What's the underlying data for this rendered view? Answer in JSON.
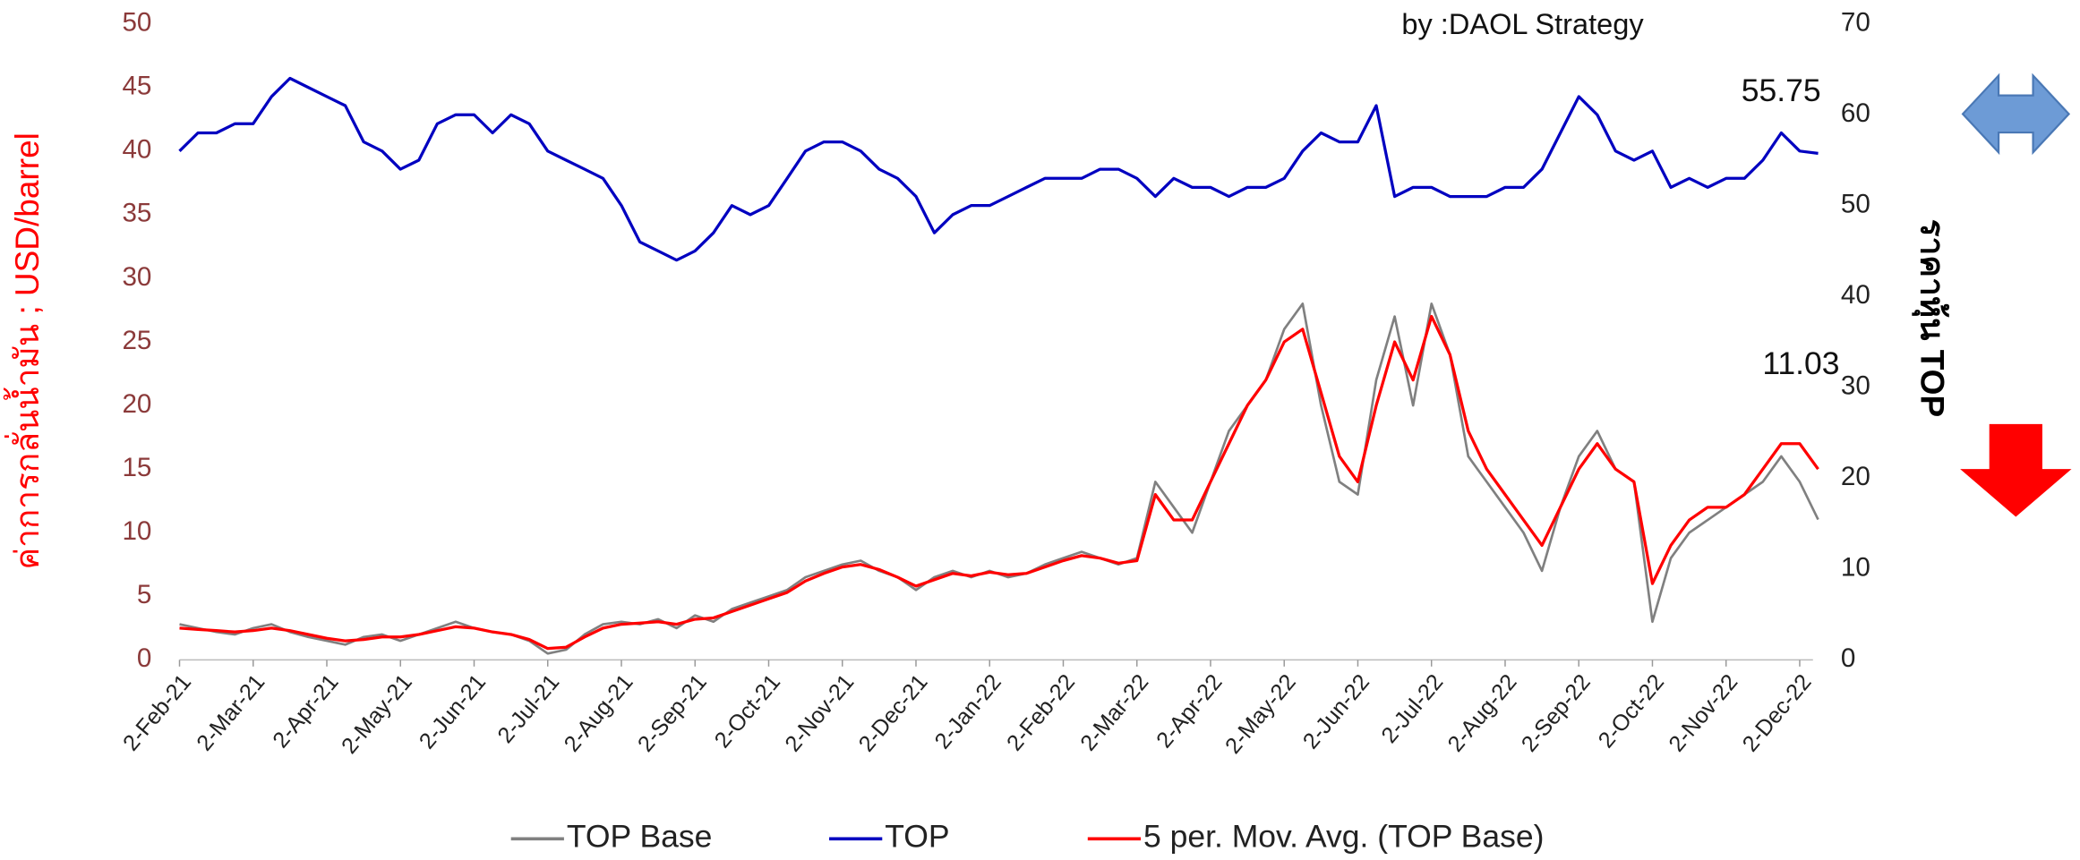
{
  "chart_data": {
    "type": "line",
    "annotations": [
      "by :DAOL Strategy",
      "55.75",
      "11.03"
    ],
    "ylabel": "ค่าการกลั่นน้ำมัน ; USD/barrel",
    "y2label": "ราคาหุ้น TOP",
    "categories": [
      "2-Feb-21",
      null,
      null,
      null,
      "2-Mar-21",
      null,
      null,
      null,
      "2-Apr-21",
      null,
      null,
      null,
      "2-May-21",
      null,
      null,
      null,
      "2-Jun-21",
      null,
      null,
      null,
      "2-Jul-21",
      null,
      null,
      null,
      "2-Aug-21",
      null,
      null,
      null,
      "2-Sep-21",
      null,
      null,
      null,
      "2-Oct-21",
      null,
      null,
      null,
      "2-Nov-21",
      null,
      null,
      null,
      "2-Dec-21",
      null,
      null,
      null,
      "2-Jan-22",
      null,
      null,
      null,
      "2-Feb-22",
      null,
      null,
      null,
      "2-Mar-22",
      null,
      null,
      null,
      "2-Apr-22",
      null,
      null,
      null,
      "2-May-22",
      null,
      null,
      null,
      "2-Jun-22",
      null,
      null,
      null,
      "2-Jul-22",
      null,
      null,
      null,
      "2-Aug-22",
      null,
      null,
      null,
      "2-Sep-22",
      null,
      null,
      null,
      "2-Oct-22",
      null,
      null,
      null,
      "2-Nov-22",
      null,
      null,
      null,
      "2-Dec-22",
      null
    ],
    "series": [
      {
        "name": "TOP Base",
        "color": "#808080",
        "values": [
          2.8,
          2.5,
          2.2,
          2.0,
          2.5,
          2.8,
          2.2,
          1.8,
          1.5,
          1.2,
          1.8,
          2.0,
          1.5,
          2.0,
          2.5,
          3.0,
          2.5,
          2.2,
          2.0,
          1.5,
          0.5,
          0.8,
          2.0,
          2.8,
          3.0,
          2.8,
          3.2,
          2.5,
          3.5,
          3.0,
          4.0,
          4.5,
          5.0,
          5.5,
          6.5,
          7.0,
          7.5,
          7.8,
          7.0,
          6.5,
          5.5,
          6.5,
          7.0,
          6.5,
          7.0,
          6.5,
          6.8,
          7.5,
          8.0,
          8.5,
          8.0,
          7.5,
          8.0,
          14,
          12,
          10,
          14,
          18,
          20,
          22,
          26,
          28,
          20,
          14,
          13,
          22,
          27,
          20,
          28,
          24,
          16,
          14,
          12,
          10,
          7,
          12,
          16,
          18,
          15,
          14,
          3,
          8,
          10,
          11,
          12,
          13,
          14,
          16,
          14,
          11.03
        ]
      },
      {
        "name": "TOP",
        "color": "#0000c0",
        "axis": "y2",
        "values": [
          56,
          58,
          58,
          59,
          59,
          62,
          64,
          63,
          62,
          61,
          57,
          56,
          54,
          55,
          59,
          60,
          60,
          58,
          60,
          59,
          56,
          55,
          54,
          53,
          50,
          46,
          45,
          44,
          45,
          47,
          50,
          49,
          50,
          53,
          56,
          57,
          57,
          56,
          54,
          53,
          51,
          47,
          49,
          50,
          50,
          51,
          52,
          53,
          53,
          53,
          54,
          54,
          53,
          51,
          53,
          52,
          52,
          51,
          52,
          52,
          53,
          56,
          58,
          57,
          57,
          61,
          51,
          52,
          52,
          51,
          51,
          51,
          52,
          52,
          54,
          58,
          62,
          60,
          56,
          55,
          56,
          52,
          53,
          52,
          53,
          53,
          55,
          58,
          56,
          55.75
        ]
      },
      {
        "name": "5 per. Mov. Avg. (TOP Base)",
        "color": "#ff0000",
        "values": [
          2.5,
          2.4,
          2.3,
          2.2,
          2.3,
          2.5,
          2.3,
          2.0,
          1.7,
          1.5,
          1.6,
          1.8,
          1.8,
          2.0,
          2.3,
          2.6,
          2.5,
          2.2,
          2.0,
          1.6,
          0.9,
          1.0,
          1.8,
          2.5,
          2.8,
          2.9,
          3.0,
          2.8,
          3.2,
          3.3,
          3.8,
          4.3,
          4.8,
          5.3,
          6.2,
          6.8,
          7.3,
          7.5,
          7.1,
          6.5,
          5.8,
          6.3,
          6.8,
          6.6,
          6.9,
          6.7,
          6.8,
          7.3,
          7.8,
          8.2,
          8.0,
          7.6,
          7.8,
          13,
          11,
          11,
          14,
          17,
          20,
          22,
          25,
          26,
          21,
          16,
          14,
          20,
          25,
          22,
          27,
          24,
          18,
          15,
          13,
          11,
          9,
          12,
          15,
          17,
          15,
          14,
          6,
          9,
          11,
          12,
          12,
          13,
          15,
          17,
          17,
          15
        ]
      }
    ],
    "ylim": [
      0,
      50
    ],
    "yticks": [
      0,
      5,
      10,
      15,
      20,
      25,
      30,
      35,
      40,
      45,
      50
    ],
    "y2lim": [
      0,
      70
    ],
    "y2ticks": [
      0,
      10,
      20,
      30,
      40,
      50,
      60,
      70
    ],
    "legend": "bottom",
    "grid": false
  }
}
